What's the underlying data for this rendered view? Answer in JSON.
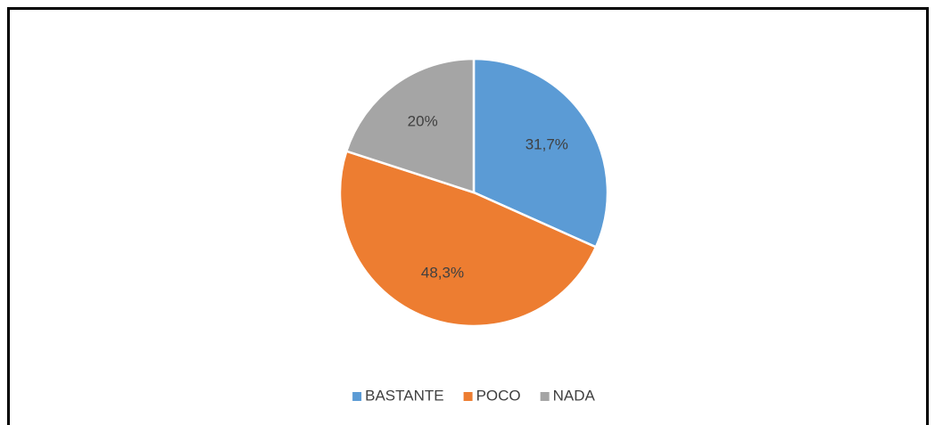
{
  "chart_data": {
    "type": "pie",
    "categories": [
      "BASTANTE",
      "POCO",
      "NADA"
    ],
    "values": [
      31.7,
      48.3,
      20
    ],
    "value_labels": [
      "31,7%",
      "48,3%",
      "20%"
    ],
    "colors": [
      "#5b9bd5",
      "#ed7d31",
      "#a5a5a5"
    ],
    "legend": "bottom"
  }
}
